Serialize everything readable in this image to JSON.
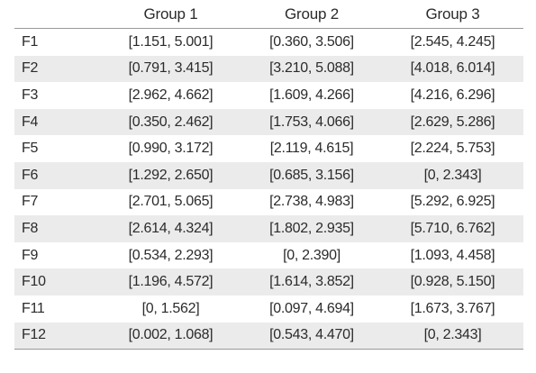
{
  "table": {
    "corner_header": "",
    "headers": [
      "Group 1",
      "Group 2",
      "Group 3"
    ],
    "rows": [
      {
        "label": "F1",
        "cells": [
          "[1.151, 5.001]",
          "[0.360, 3.506]",
          "[2.545, 4.245]"
        ]
      },
      {
        "label": "F2",
        "cells": [
          "[0.791, 3.415]",
          "[3.210, 5.088]",
          "[4.018, 6.014]"
        ]
      },
      {
        "label": "F3",
        "cells": [
          "[2.962, 4.662]",
          "[1.609, 4.266]",
          "[4.216, 6.296]"
        ]
      },
      {
        "label": "F4",
        "cells": [
          "[0.350, 2.462]",
          "[1.753, 4.066]",
          "[2.629, 5.286]"
        ]
      },
      {
        "label": "F5",
        "cells": [
          "[0.990, 3.172]",
          "[2.119, 4.615]",
          "[2.224, 5.753]"
        ]
      },
      {
        "label": "F6",
        "cells": [
          "[1.292, 2.650]",
          "[0.685, 3.156]",
          "[0, 2.343]"
        ]
      },
      {
        "label": "F7",
        "cells": [
          "[2.701, 5.065]",
          "[2.738, 4.983]",
          "[5.292, 6.925]"
        ]
      },
      {
        "label": "F8",
        "cells": [
          "[2.614, 4.324]",
          "[1.802, 2.935]",
          "[5.710, 6.762]"
        ]
      },
      {
        "label": "F9",
        "cells": [
          "[0.534, 2.293]",
          "[0, 2.390]",
          "[1.093, 4.458]"
        ]
      },
      {
        "label": "F10",
        "cells": [
          "[1.196, 4.572]",
          "[1.614, 3.852]",
          "[0.928, 5.150]"
        ]
      },
      {
        "label": "F11",
        "cells": [
          "[0, 1.562]",
          "[0.097, 4.694]",
          "[1.673, 3.767]"
        ]
      },
      {
        "label": "F12",
        "cells": [
          "[0.002, 1.068]",
          "[0.543, 4.470]",
          "[0, 2.343]"
        ]
      }
    ]
  },
  "colors": {
    "stripe": "#ebebeb",
    "rule": "#9a9a9a",
    "text": "#2b2b2b"
  }
}
